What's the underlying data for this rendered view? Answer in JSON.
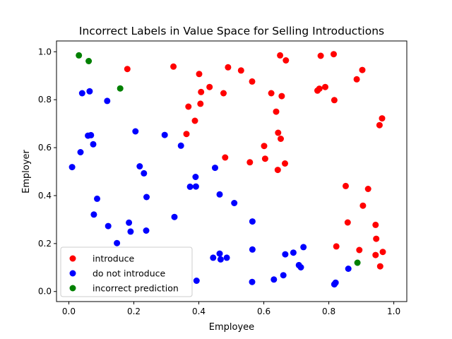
{
  "chart_data": {
    "type": "scatter",
    "title": "Incorrect Labels in Value Space for Selling Introductions",
    "xlabel": "Employee",
    "ylabel": "Employer",
    "xlim": [
      -0.038,
      1.04
    ],
    "ylim": [
      -0.042,
      1.045
    ],
    "xticks": [
      0.0,
      0.2,
      0.4,
      0.6,
      0.8,
      1.0
    ],
    "yticks": [
      0.0,
      0.2,
      0.4,
      0.6,
      0.8,
      1.0
    ],
    "xtick_labels": [
      "0.0",
      "0.2",
      "0.4",
      "0.6",
      "0.8",
      "1.0"
    ],
    "ytick_labels": [
      "0.0",
      "0.2",
      "0.4",
      "0.6",
      "0.8",
      "1.0"
    ],
    "grid": false,
    "legend_position": "lower-left",
    "series": [
      {
        "name": "introduce",
        "color": "#ff0000",
        "points": [
          [
            0.18,
            0.928
          ],
          [
            0.322,
            0.938
          ],
          [
            0.401,
            0.907
          ],
          [
            0.407,
            0.832
          ],
          [
            0.405,
            0.783
          ],
          [
            0.433,
            0.853
          ],
          [
            0.368,
            0.771
          ],
          [
            0.388,
            0.712
          ],
          [
            0.362,
            0.657
          ],
          [
            0.476,
            0.827
          ],
          [
            0.49,
            0.935
          ],
          [
            0.53,
            0.922
          ],
          [
            0.564,
            0.876
          ],
          [
            0.481,
            0.559
          ],
          [
            0.557,
            0.539
          ],
          [
            0.601,
            0.607
          ],
          [
            0.604,
            0.554
          ],
          [
            0.623,
            0.827
          ],
          [
            0.638,
            0.75
          ],
          [
            0.644,
            0.662
          ],
          [
            0.652,
            0.637
          ],
          [
            0.655,
            0.815
          ],
          [
            0.65,
            0.985
          ],
          [
            0.668,
            0.964
          ],
          [
            0.643,
            0.507
          ],
          [
            0.665,
            0.534
          ],
          [
            0.765,
            0.838
          ],
          [
            0.771,
            0.846
          ],
          [
            0.775,
            0.983
          ],
          [
            0.789,
            0.853
          ],
          [
            0.815,
            0.99
          ],
          [
            0.817,
            0.798
          ],
          [
            0.886,
            0.885
          ],
          [
            0.903,
            0.924
          ],
          [
            0.852,
            0.44
          ],
          [
            0.858,
            0.288
          ],
          [
            0.823,
            0.188
          ],
          [
            0.894,
            0.173
          ],
          [
            0.905,
            0.358
          ],
          [
            0.921,
            0.428
          ],
          [
            0.944,
            0.278
          ],
          [
            0.946,
            0.22
          ],
          [
            0.944,
            0.152
          ],
          [
            0.956,
            0.694
          ],
          [
            0.964,
            0.722
          ],
          [
            0.966,
            0.165
          ],
          [
            0.958,
            0.105
          ]
        ]
      },
      {
        "name": "do not introduce",
        "color": "#0000ff",
        "points": [
          [
            0.01,
            0.519
          ],
          [
            0.041,
            0.827
          ],
          [
            0.064,
            0.835
          ],
          [
            0.118,
            0.795
          ],
          [
            0.036,
            0.581
          ],
          [
            0.059,
            0.65
          ],
          [
            0.068,
            0.652
          ],
          [
            0.075,
            0.614
          ],
          [
            0.205,
            0.668
          ],
          [
            0.218,
            0.522
          ],
          [
            0.231,
            0.493
          ],
          [
            0.295,
            0.653
          ],
          [
            0.345,
            0.608
          ],
          [
            0.087,
            0.387
          ],
          [
            0.077,
            0.321
          ],
          [
            0.121,
            0.273
          ],
          [
            0.148,
            0.202
          ],
          [
            0.185,
            0.287
          ],
          [
            0.19,
            0.25
          ],
          [
            0.239,
            0.394
          ],
          [
            0.238,
            0.254
          ],
          [
            0.325,
            0.311
          ],
          [
            0.373,
            0.437
          ],
          [
            0.391,
            0.438
          ],
          [
            0.39,
            0.478
          ],
          [
            0.45,
            0.516
          ],
          [
            0.464,
            0.405
          ],
          [
            0.509,
            0.369
          ],
          [
            0.565,
            0.292
          ],
          [
            0.444,
            0.141
          ],
          [
            0.464,
            0.158
          ],
          [
            0.467,
            0.134
          ],
          [
            0.486,
            0.141
          ],
          [
            0.565,
            0.175
          ],
          [
            0.564,
            0.04
          ],
          [
            0.393,
            0.045
          ],
          [
            0.631,
            0.05
          ],
          [
            0.66,
            0.068
          ],
          [
            0.666,
            0.155
          ],
          [
            0.691,
            0.162
          ],
          [
            0.708,
            0.11
          ],
          [
            0.714,
            0.101
          ],
          [
            0.722,
            0.185
          ],
          [
            0.817,
            0.03
          ],
          [
            0.821,
            0.037
          ],
          [
            0.86,
            0.095
          ]
        ]
      },
      {
        "name": "incorrect prediction",
        "color": "#008000",
        "points": [
          [
            0.031,
            0.985
          ],
          [
            0.061,
            0.961
          ],
          [
            0.158,
            0.847
          ],
          [
            0.888,
            0.12
          ]
        ]
      }
    ]
  }
}
